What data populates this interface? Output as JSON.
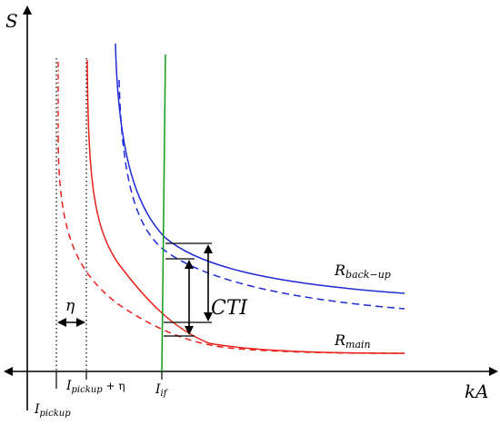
{
  "axes": {
    "y_label": "S",
    "x_label": "kA"
  },
  "labels": {
    "i_pickup": "I",
    "i_pickup_sub": "pickup",
    "i_pickup_eta": "I",
    "i_pickup_eta_sub": "pickup",
    "i_pickup_eta_suffix": " + η",
    "i_if": "I",
    "i_if_sub": "if",
    "eta": "η",
    "cti": "CTI",
    "r_backup": "R",
    "r_backup_sub": "back−up",
    "r_main": "R",
    "r_main_sub": "main"
  },
  "colors": {
    "main_curve": "#e8211b",
    "backup_curve": "#1f2bd6",
    "fault_line": "#139a19",
    "axis": "#000000"
  },
  "line_styles": {
    "main_actual": "solid",
    "main_nominal": "dashed",
    "backup_actual": "solid",
    "backup_nominal": "dashed",
    "pickup_markers": "dotted"
  }
}
